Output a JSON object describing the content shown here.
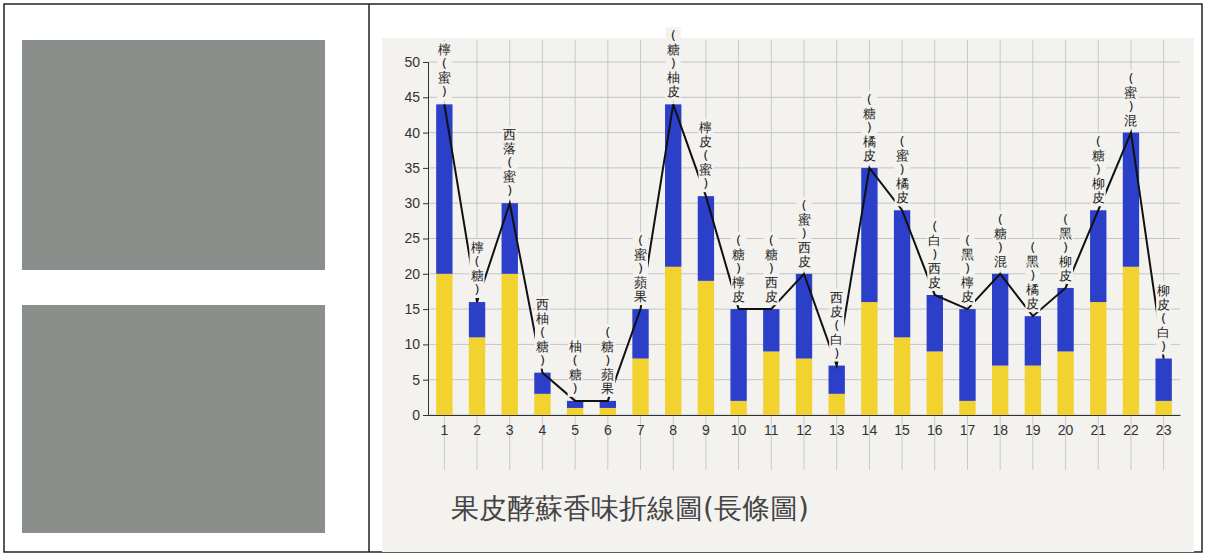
{
  "chart_data": {
    "type": "bar",
    "title": "果皮酵蘇香味折線圖(長條圖)",
    "categories": [
      "1",
      "2",
      "3",
      "4",
      "5",
      "6",
      "7",
      "8",
      "9",
      "10",
      "11",
      "12",
      "13",
      "14",
      "15",
      "16",
      "17",
      "18",
      "19",
      "20",
      "21",
      "22",
      "23"
    ],
    "annotations": [
      "檸(蜜)",
      "檸(糖)",
      "西落(蜜)",
      "西柚(糖)",
      "柚(糖)",
      "(糖)蘋果",
      "(蜜)蘋果",
      "(糖)柚皮",
      "檸皮(蜜)",
      "(糖)檸皮",
      "(糖)西皮",
      "(蜜)西皮",
      "西皮(白)",
      "(糖)橘皮",
      "(蜜)橘皮",
      "(白)西皮",
      "(黑)檸皮",
      "(糖)混",
      "(黑)橘皮",
      "(黑)柳皮",
      "(糖)柳皮",
      "(蜜)混",
      "柳皮(白)"
    ],
    "series": [
      {
        "color": "#f2d22e",
        "values": [
          20,
          11,
          20,
          3,
          1,
          1,
          8,
          21,
          19,
          2,
          9,
          8,
          3,
          16,
          11,
          9,
          2,
          7,
          7,
          9,
          16,
          21,
          2
        ]
      },
      {
        "color": "#2b3fc8",
        "values": [
          24,
          5,
          10,
          3,
          1,
          1,
          7,
          23,
          12,
          13,
          6,
          12,
          4,
          19,
          18,
          8,
          13,
          13,
          7,
          9,
          13,
          19,
          6
        ]
      }
    ],
    "stacked": true,
    "ylim": [
      0,
      50
    ],
    "yticks": [
      0,
      5,
      10,
      15,
      20,
      25,
      30,
      35,
      40,
      45,
      50
    ],
    "grid": true
  }
}
